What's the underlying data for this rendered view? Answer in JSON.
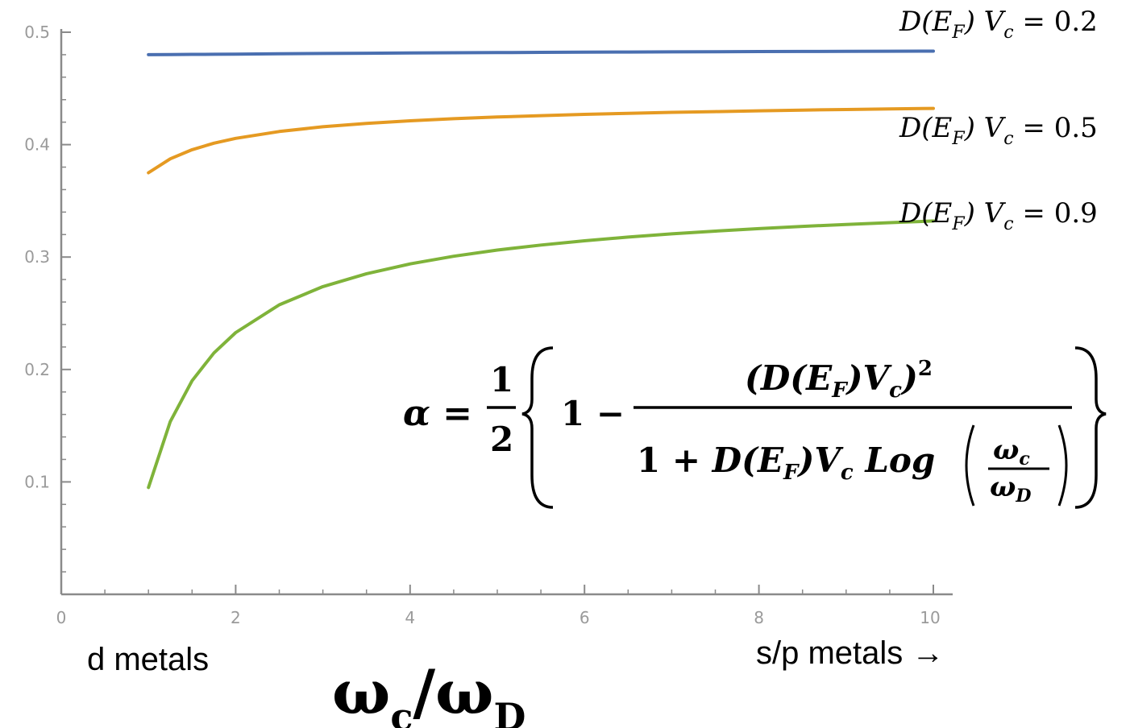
{
  "chart_data": {
    "type": "line",
    "x": [
      1,
      1.25,
      1.5,
      1.75,
      2,
      2.5,
      3,
      3.5,
      4,
      4.5,
      5,
      5.5,
      6,
      6.5,
      7,
      7.5,
      8,
      8.5,
      9,
      9.5,
      10
    ],
    "series": [
      {
        "name": "D(E_F) V_c = 0.2",
        "color": "#4a6fb0",
        "values": [
          0.48,
          0.4801,
          0.4803,
          0.4804,
          0.4805,
          0.4808,
          0.4811,
          0.4813,
          0.4815,
          0.4817,
          0.4819,
          0.4821,
          0.4822,
          0.4824,
          0.4825,
          0.4827,
          0.4828,
          0.4829,
          0.483,
          0.4831,
          0.4832
        ]
      },
      {
        "name": "D(E_F) V_c = 0.5",
        "color": "#e59a22",
        "values": [
          0.375,
          0.3874,
          0.3955,
          0.4013,
          0.4056,
          0.4117,
          0.4159,
          0.4189,
          0.4212,
          0.4231,
          0.4246,
          0.4258,
          0.4269,
          0.4279,
          0.4287,
          0.4294,
          0.4301,
          0.4307,
          0.4312,
          0.4317,
          0.4322
        ]
      },
      {
        "name": "D(E_F) V_c = 0.9",
        "color": "#7fb33a",
        "values": [
          0.095,
          0.1537,
          0.19,
          0.2147,
          0.2328,
          0.2575,
          0.2737,
          0.2852,
          0.2939,
          0.3007,
          0.3062,
          0.3107,
          0.3145,
          0.3178,
          0.3206,
          0.3231,
          0.3253,
          0.3273,
          0.329,
          0.3306,
          0.3321
        ]
      }
    ],
    "xlim": [
      0,
      10
    ],
    "ylim": [
      0,
      0.5
    ],
    "xticks": [
      "0",
      "2",
      "4",
      "6",
      "8",
      "10"
    ],
    "yticks": [
      "0.1",
      "0.2",
      "0.3",
      "0.4",
      "0.5"
    ],
    "grid": false
  },
  "labels": {
    "series_0": "0.2",
    "series_1": "0.5",
    "series_2": "0.9",
    "left_note": "d metals",
    "right_note": "s/p metals  →",
    "formula_alpha": "α =",
    "formula_half_num": "1",
    "formula_half_den": "2",
    "formula_one": "1 −"
  }
}
